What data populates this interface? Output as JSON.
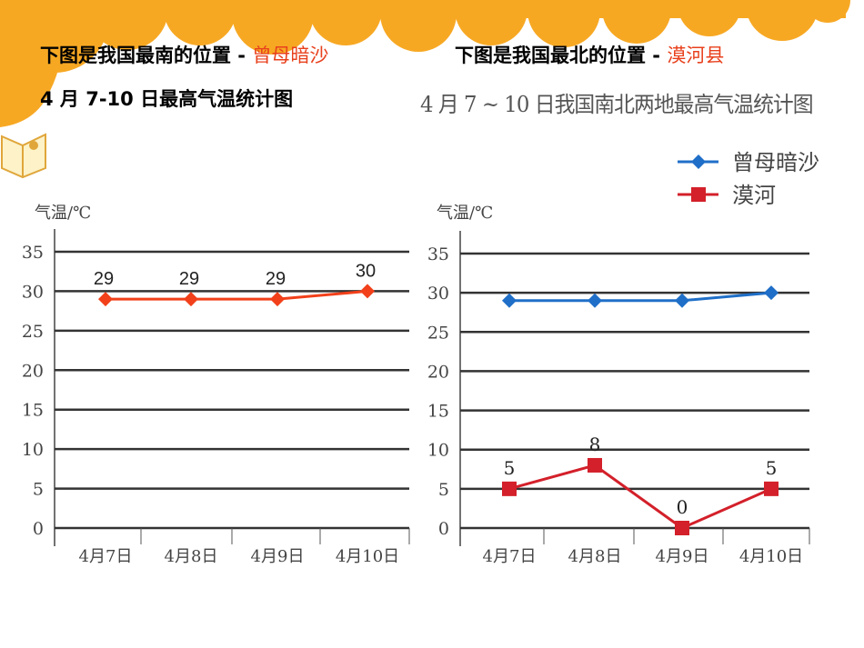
{
  "slide": {
    "left_heading": {
      "prefix": "下图是我国最南的位置 - ",
      "place": "曾母暗沙"
    },
    "left_subheading": "4 月 7-10 日最高气温统计图",
    "right_heading": {
      "prefix": "下图是我国最北的位置 - ",
      "place": "漠河县"
    },
    "accent_color": "#f7a823",
    "highlight_color": "#e8401c"
  },
  "chart_data": [
    {
      "type": "line",
      "title": "",
      "ylabel": "气温/℃",
      "xlabel": "",
      "ylim": [
        0,
        35
      ],
      "yticks": [
        "0",
        "5",
        "10",
        "15",
        "20",
        "25",
        "30",
        "35"
      ],
      "categories": [
        "4月7日",
        "4月8日",
        "4月9日",
        "4月10日"
      ],
      "grid": true,
      "series": [
        {
          "values": [
            29,
            29,
            29,
            30
          ],
          "labels": [
            "29",
            "29",
            "29",
            "30"
          ],
          "color": "#f2401a",
          "marker": "diamond"
        }
      ]
    },
    {
      "type": "line",
      "title": "4 月 7 ~ 10 日我国南北两地最高气温统计图",
      "ylabel": "气温/℃",
      "xlabel": "",
      "ylim": [
        0,
        35
      ],
      "yticks": [
        "0",
        "5",
        "10",
        "15",
        "20",
        "25",
        "30",
        "35"
      ],
      "categories": [
        "4月7日",
        "4月8日",
        "4月9日",
        "4月10日"
      ],
      "grid": true,
      "legend": "top-right",
      "series": [
        {
          "name": "曾母暗沙",
          "values": [
            29,
            29,
            29,
            30
          ],
          "color": "#1f6fc8",
          "marker": "diamond"
        },
        {
          "name": "漠河",
          "values": [
            5,
            8,
            0,
            5
          ],
          "labels": [
            "5",
            "8",
            "0",
            "5"
          ],
          "color": "#d3202a",
          "marker": "square"
        }
      ]
    }
  ]
}
